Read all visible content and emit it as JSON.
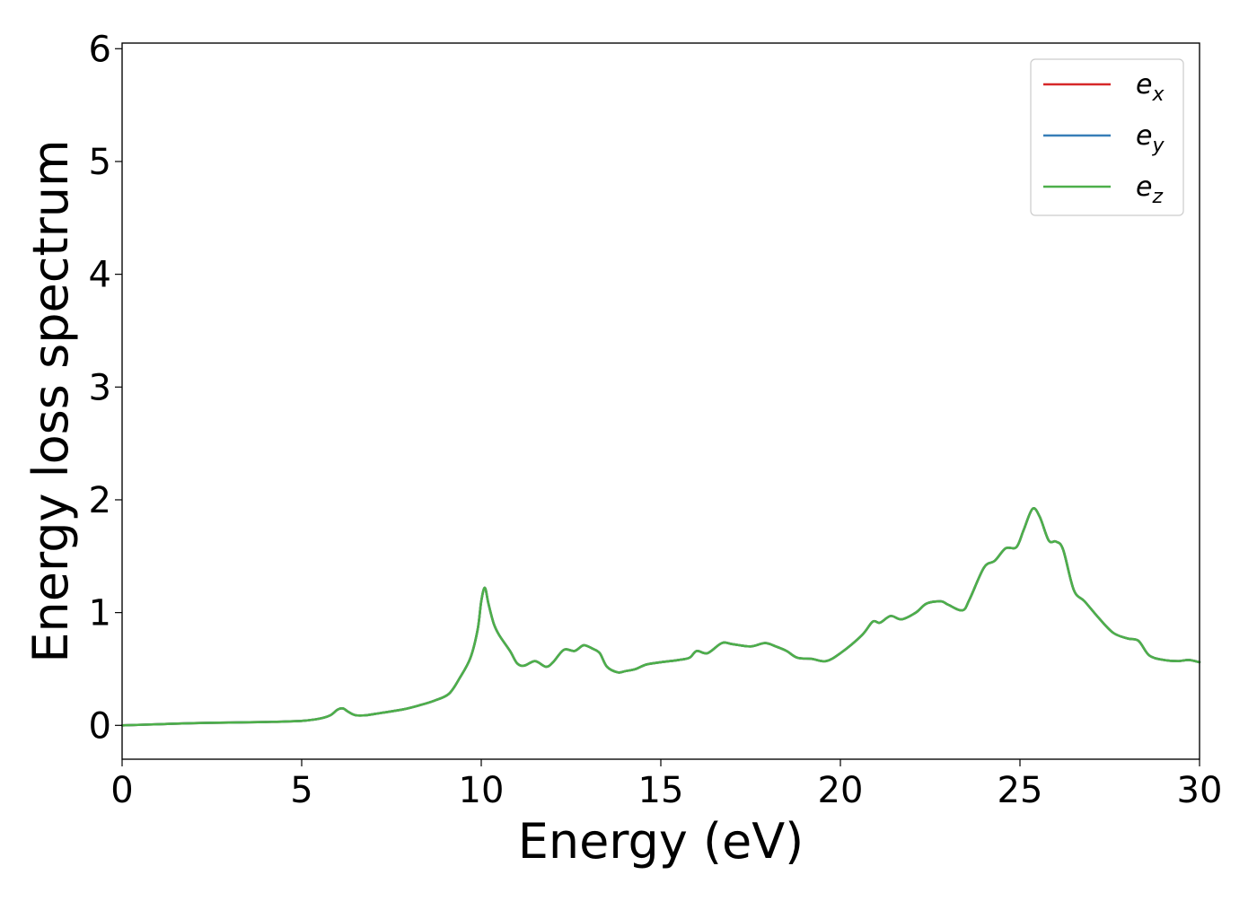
{
  "chart_data": {
    "type": "line",
    "title": "",
    "xlabel": "Energy (eV)",
    "ylabel": "Energy loss spectrum",
    "xlim": [
      0,
      30
    ],
    "ylim": [
      -0.3,
      6.05
    ],
    "xticks": [
      0,
      5,
      10,
      15,
      20,
      25,
      30
    ],
    "yticks": [
      0,
      1,
      2,
      3,
      4,
      5,
      6
    ],
    "grid": false,
    "legend_position": "top-right",
    "series": [
      {
        "name": "ex",
        "label_base": "e",
        "label_sub": "x",
        "color": "#d62728",
        "x": [
          0,
          1,
          2,
          3,
          4,
          5,
          5.5,
          5.8,
          6.0,
          6.15,
          6.3,
          6.5,
          6.8,
          7.2,
          7.8,
          8.3,
          8.7,
          9.1,
          9.4,
          9.7,
          9.9,
          10.0,
          10.1,
          10.2,
          10.35,
          10.5,
          10.8,
          11.0,
          11.2,
          11.5,
          11.8,
          12.0,
          12.3,
          12.6,
          12.85,
          13.1,
          13.3,
          13.5,
          13.8,
          14.0,
          14.3,
          14.6,
          15.0,
          15.5,
          15.8,
          16.0,
          16.3,
          16.7,
          17.0,
          17.5,
          17.9,
          18.2,
          18.5,
          18.8,
          19.2,
          19.6,
          20.0,
          20.6,
          20.9,
          21.1,
          21.4,
          21.7,
          22.1,
          22.4,
          22.8,
          23.0,
          23.4,
          23.6,
          24.0,
          24.3,
          24.6,
          24.9,
          25.1,
          25.35,
          25.55,
          25.8,
          26.0,
          26.2,
          26.5,
          26.8,
          27.2,
          27.6,
          28.0,
          28.3,
          28.6,
          29.0,
          29.4,
          29.7,
          30.0
        ],
        "y": [
          0.0,
          0.01,
          0.02,
          0.025,
          0.03,
          0.04,
          0.06,
          0.09,
          0.14,
          0.15,
          0.12,
          0.09,
          0.09,
          0.11,
          0.14,
          0.18,
          0.22,
          0.28,
          0.42,
          0.6,
          0.85,
          1.1,
          1.22,
          1.08,
          0.9,
          0.8,
          0.66,
          0.55,
          0.53,
          0.57,
          0.52,
          0.56,
          0.67,
          0.66,
          0.71,
          0.68,
          0.64,
          0.52,
          0.47,
          0.48,
          0.5,
          0.54,
          0.56,
          0.58,
          0.6,
          0.66,
          0.64,
          0.73,
          0.72,
          0.7,
          0.73,
          0.7,
          0.66,
          0.6,
          0.59,
          0.57,
          0.64,
          0.8,
          0.92,
          0.91,
          0.97,
          0.94,
          1.0,
          1.08,
          1.1,
          1.07,
          1.02,
          1.12,
          1.4,
          1.46,
          1.57,
          1.58,
          1.73,
          1.92,
          1.85,
          1.64,
          1.63,
          1.56,
          1.2,
          1.1,
          0.95,
          0.82,
          0.77,
          0.75,
          0.62,
          0.58,
          0.57,
          0.58,
          0.56
        ]
      },
      {
        "name": "ey",
        "label_base": "e",
        "label_sub": "y",
        "color": "#377eb8",
        "x": [
          0,
          1,
          2,
          3,
          4,
          5,
          5.5,
          5.8,
          6.0,
          6.15,
          6.3,
          6.5,
          6.8,
          7.2,
          7.8,
          8.3,
          8.7,
          9.1,
          9.4,
          9.7,
          9.9,
          10.0,
          10.1,
          10.2,
          10.35,
          10.5,
          10.8,
          11.0,
          11.2,
          11.5,
          11.8,
          12.0,
          12.3,
          12.6,
          12.85,
          13.1,
          13.3,
          13.5,
          13.8,
          14.0,
          14.3,
          14.6,
          15.0,
          15.5,
          15.8,
          16.0,
          16.3,
          16.7,
          17.0,
          17.5,
          17.9,
          18.2,
          18.5,
          18.8,
          19.2,
          19.6,
          20.0,
          20.6,
          20.9,
          21.1,
          21.4,
          21.7,
          22.1,
          22.4,
          22.8,
          23.0,
          23.4,
          23.6,
          24.0,
          24.3,
          24.6,
          24.9,
          25.1,
          25.35,
          25.55,
          25.8,
          26.0,
          26.2,
          26.5,
          26.8,
          27.2,
          27.6,
          28.0,
          28.3,
          28.6,
          29.0,
          29.4,
          29.7,
          30.0
        ],
        "y": [
          0.0,
          0.01,
          0.02,
          0.025,
          0.03,
          0.04,
          0.06,
          0.09,
          0.14,
          0.15,
          0.12,
          0.09,
          0.09,
          0.11,
          0.14,
          0.18,
          0.22,
          0.28,
          0.42,
          0.6,
          0.85,
          1.1,
          1.22,
          1.08,
          0.9,
          0.8,
          0.66,
          0.55,
          0.53,
          0.57,
          0.52,
          0.56,
          0.67,
          0.66,
          0.71,
          0.68,
          0.64,
          0.52,
          0.47,
          0.48,
          0.5,
          0.54,
          0.56,
          0.58,
          0.6,
          0.66,
          0.64,
          0.73,
          0.72,
          0.7,
          0.73,
          0.7,
          0.66,
          0.6,
          0.59,
          0.57,
          0.64,
          0.8,
          0.92,
          0.91,
          0.97,
          0.94,
          1.0,
          1.08,
          1.1,
          1.07,
          1.02,
          1.12,
          1.4,
          1.46,
          1.57,
          1.58,
          1.73,
          1.92,
          1.85,
          1.64,
          1.63,
          1.56,
          1.2,
          1.1,
          0.95,
          0.82,
          0.77,
          0.75,
          0.62,
          0.58,
          0.57,
          0.58,
          0.56
        ]
      },
      {
        "name": "ez",
        "label_base": "e",
        "label_sub": "z",
        "color": "#4daf4a",
        "x": [
          0,
          1,
          2,
          3,
          4,
          5,
          5.5,
          5.8,
          6.0,
          6.15,
          6.3,
          6.5,
          6.8,
          7.2,
          7.8,
          8.3,
          8.7,
          9.1,
          9.4,
          9.7,
          9.9,
          10.0,
          10.1,
          10.2,
          10.35,
          10.5,
          10.8,
          11.0,
          11.2,
          11.5,
          11.8,
          12.0,
          12.3,
          12.6,
          12.85,
          13.1,
          13.3,
          13.5,
          13.8,
          14.0,
          14.3,
          14.6,
          15.0,
          15.5,
          15.8,
          16.0,
          16.3,
          16.7,
          17.0,
          17.5,
          17.9,
          18.2,
          18.5,
          18.8,
          19.2,
          19.6,
          20.0,
          20.6,
          20.9,
          21.1,
          21.4,
          21.7,
          22.1,
          22.4,
          22.8,
          23.0,
          23.4,
          23.6,
          24.0,
          24.3,
          24.6,
          24.9,
          25.1,
          25.35,
          25.55,
          25.8,
          26.0,
          26.2,
          26.5,
          26.8,
          27.2,
          27.6,
          28.0,
          28.3,
          28.6,
          29.0,
          29.4,
          29.7,
          30.0
        ],
        "y": [
          0.0,
          0.01,
          0.02,
          0.025,
          0.03,
          0.04,
          0.06,
          0.09,
          0.14,
          0.15,
          0.12,
          0.09,
          0.09,
          0.11,
          0.14,
          0.18,
          0.22,
          0.28,
          0.42,
          0.6,
          0.85,
          1.1,
          1.22,
          1.08,
          0.9,
          0.8,
          0.66,
          0.55,
          0.53,
          0.57,
          0.52,
          0.56,
          0.67,
          0.66,
          0.71,
          0.68,
          0.64,
          0.52,
          0.47,
          0.48,
          0.5,
          0.54,
          0.56,
          0.58,
          0.6,
          0.66,
          0.64,
          0.73,
          0.72,
          0.7,
          0.73,
          0.7,
          0.66,
          0.6,
          0.59,
          0.57,
          0.64,
          0.8,
          0.92,
          0.91,
          0.97,
          0.94,
          1.0,
          1.08,
          1.1,
          1.07,
          1.02,
          1.12,
          1.4,
          1.46,
          1.57,
          1.58,
          1.73,
          1.92,
          1.85,
          1.64,
          1.63,
          1.56,
          1.2,
          1.1,
          0.95,
          0.82,
          0.77,
          0.75,
          0.62,
          0.58,
          0.57,
          0.58,
          0.56
        ]
      }
    ]
  }
}
